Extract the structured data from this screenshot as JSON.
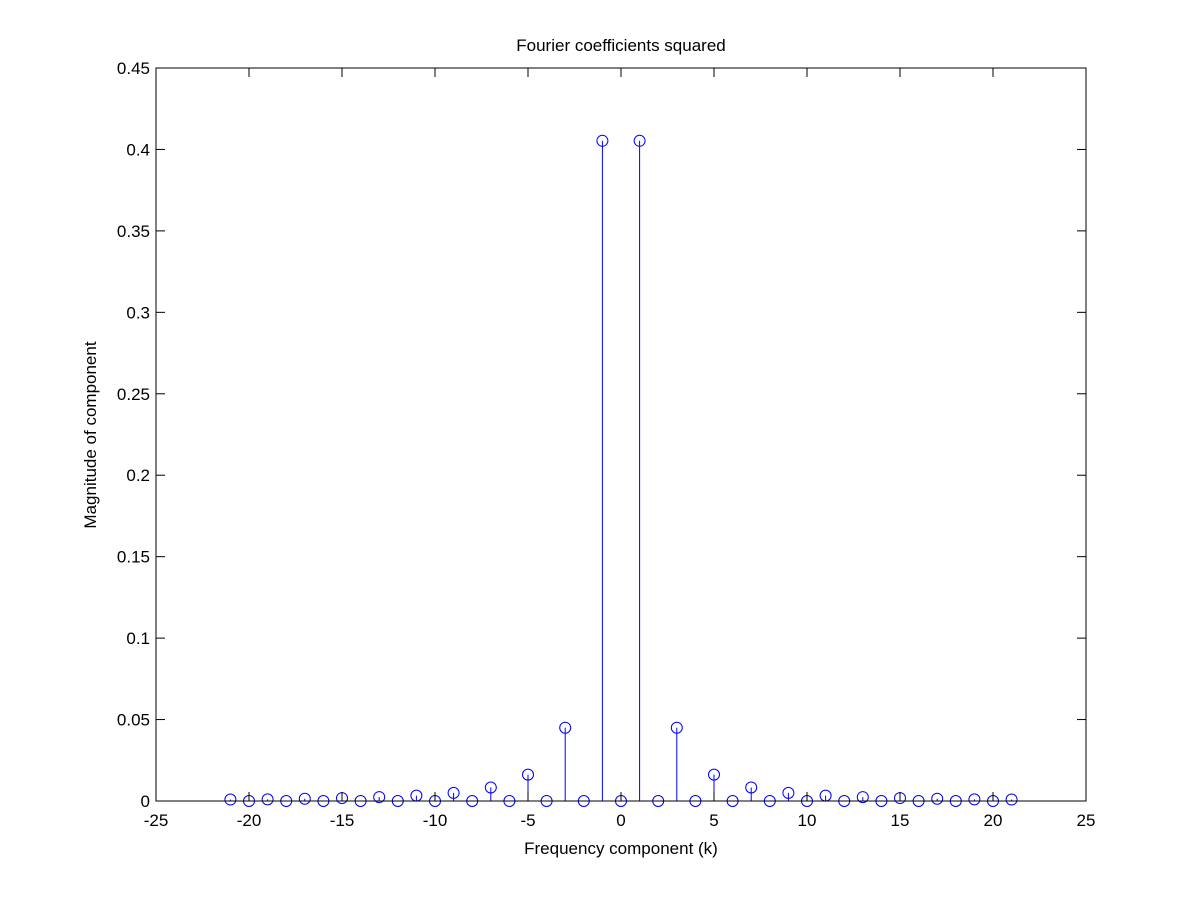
{
  "chart_data": {
    "type": "stem",
    "title": "Fourier coefficients squared",
    "xlabel": "Frequency component (k)",
    "ylabel": "Magnitude of component",
    "xlim": [
      -25,
      25
    ],
    "ylim": [
      0,
      0.45
    ],
    "xticks": [
      -25,
      -20,
      -15,
      -10,
      -5,
      0,
      5,
      10,
      15,
      20,
      25
    ],
    "yticks": [
      0,
      0.05,
      0.1,
      0.15,
      0.2,
      0.25,
      0.3,
      0.35,
      0.4,
      0.45
    ],
    "xtick_labels": [
      "-25",
      "-20",
      "-15",
      "-10",
      "-5",
      "0",
      "5",
      "10",
      "15",
      "20",
      "25"
    ],
    "ytick_labels": [
      "0",
      "0.05",
      "0.1",
      "0.15",
      "0.2",
      "0.25",
      "0.3",
      "0.35",
      "0.4",
      "0.45"
    ],
    "grid": false,
    "marker": "circle",
    "color": "#0000ff",
    "x": [
      -21,
      -20,
      -19,
      -18,
      -17,
      -16,
      -15,
      -14,
      -13,
      -12,
      -11,
      -10,
      -9,
      -8,
      -7,
      -6,
      -5,
      -4,
      -3,
      -2,
      -1,
      0,
      1,
      2,
      3,
      4,
      5,
      6,
      7,
      8,
      9,
      10,
      11,
      12,
      13,
      14,
      15,
      16,
      17,
      18,
      19,
      20,
      21
    ],
    "values": [
      0.0009,
      0,
      0.001,
      0,
      0.0014,
      0,
      0.0018,
      0,
      0.0024,
      0,
      0.0033,
      0,
      0.005,
      0,
      0.0083,
      0,
      0.0162,
      0,
      0.045,
      0,
      0.4053,
      0,
      0.4053,
      0,
      0.045,
      0,
      0.0162,
      0,
      0.0083,
      0,
      0.005,
      0,
      0.0033,
      0,
      0.0024,
      0,
      0.0018,
      0,
      0.0014,
      0,
      0.001,
      0,
      0.0009
    ]
  }
}
